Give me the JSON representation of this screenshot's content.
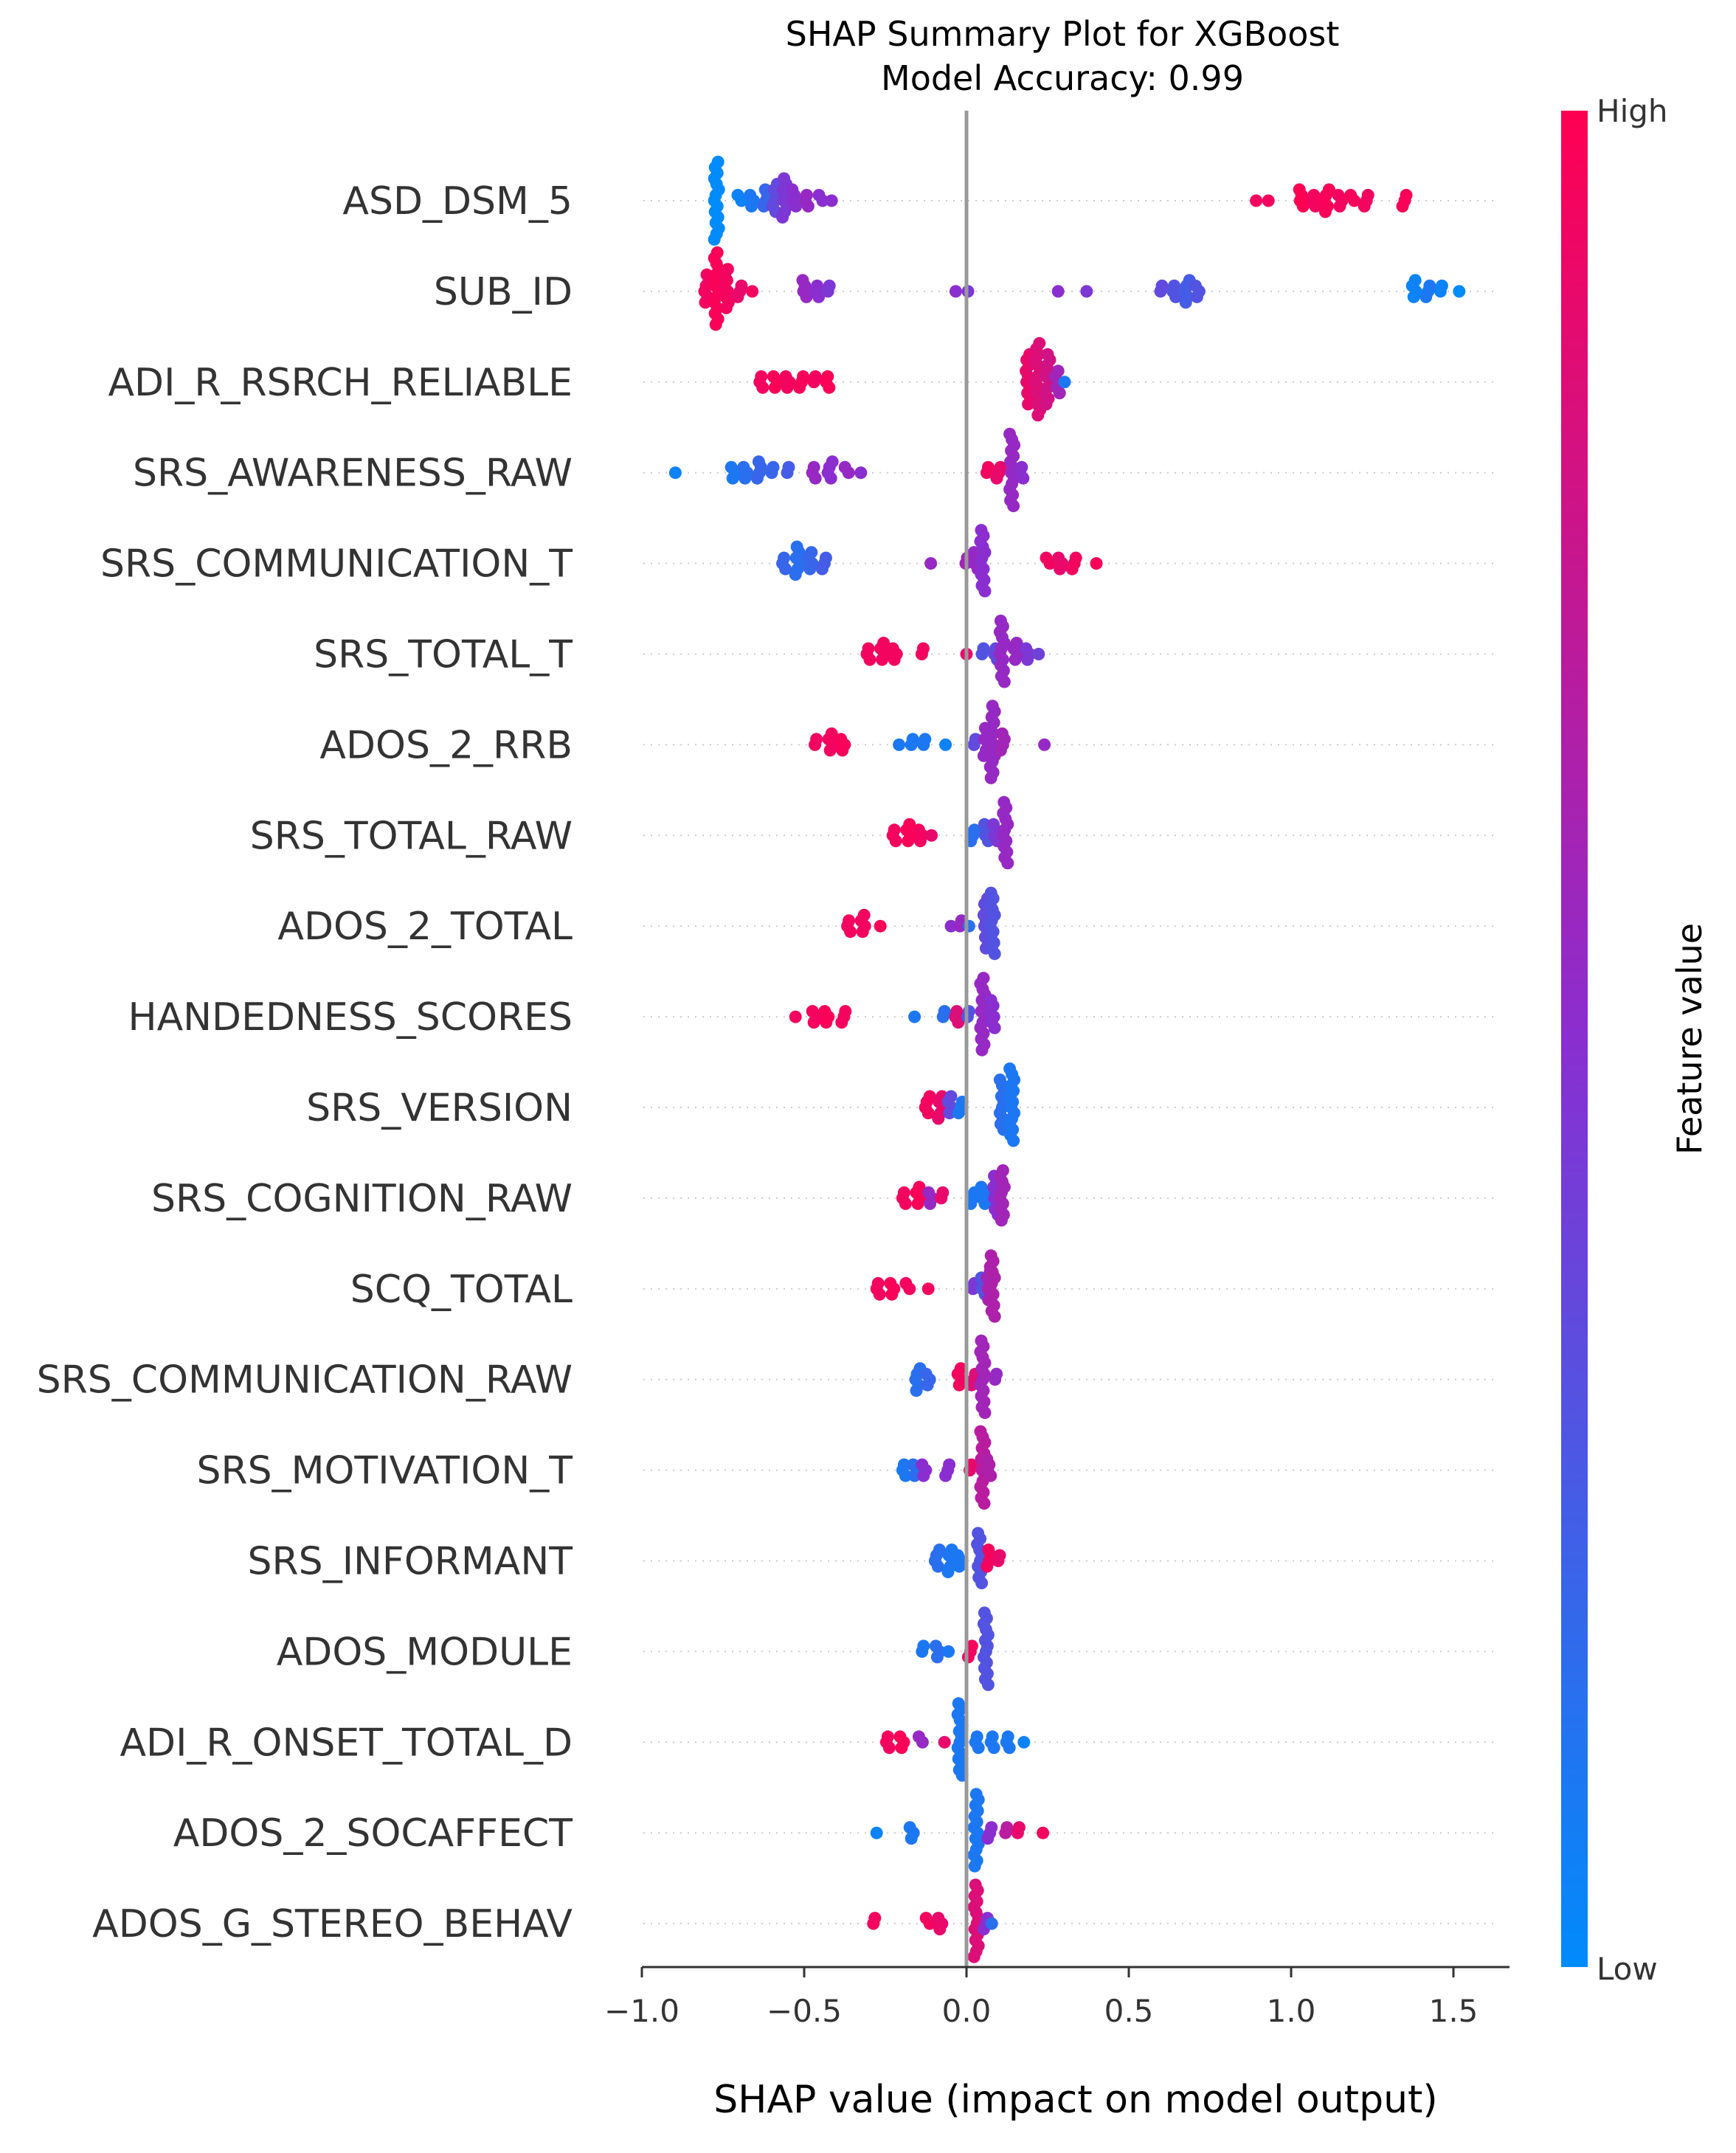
{
  "chart_data": {
    "type": "scatter",
    "title": "SHAP Summary Plot for XGBoost",
    "subtitle": "Model Accuracy: 0.99",
    "xlabel": "SHAP value (impact on model output)",
    "ylabel": "",
    "xlim": [
      -1.05,
      1.65
    ],
    "xticks": [
      -1.0,
      -0.5,
      0.0,
      0.5,
      1.0,
      1.5
    ],
    "xtick_labels": [
      "−1.0",
      "−0.5",
      "0.0",
      "0.5",
      "1.0",
      "1.5"
    ],
    "grid": false,
    "colorbar": {
      "label": "Feature value",
      "high_label": "High",
      "low_label": "Low",
      "high_color": "#ff0052",
      "mid_color": "#8a2ed0",
      "low_color": "#008bfb"
    },
    "features": [
      {
        "name": "ASD_DSM_5",
        "points": [
          {
            "x": -0.77,
            "v": 0.0,
            "n": 18
          },
          {
            "x": -0.7,
            "v": 0.05,
            "n": 2
          },
          {
            "x": -0.66,
            "v": 0.1,
            "n": 3
          },
          {
            "x": -0.62,
            "v": 0.2,
            "n": 4
          },
          {
            "x": -0.59,
            "v": 0.35,
            "n": 6
          },
          {
            "x": -0.56,
            "v": 0.45,
            "n": 8
          },
          {
            "x": -0.53,
            "v": 0.5,
            "n": 4
          },
          {
            "x": -0.49,
            "v": 0.55,
            "n": 3
          },
          {
            "x": -0.45,
            "v": 0.5,
            "n": 2
          },
          {
            "x": -0.42,
            "v": 0.5,
            "n": 1
          },
          {
            "x": 0.89,
            "v": 0.95,
            "n": 1
          },
          {
            "x": 0.93,
            "v": 0.95,
            "n": 1
          },
          {
            "x": 1.03,
            "v": 1.0,
            "n": 4
          },
          {
            "x": 1.07,
            "v": 0.95,
            "n": 3
          },
          {
            "x": 1.11,
            "v": 0.98,
            "n": 5
          },
          {
            "x": 1.15,
            "v": 0.95,
            "n": 3
          },
          {
            "x": 1.19,
            "v": 0.97,
            "n": 2
          },
          {
            "x": 1.23,
            "v": 0.95,
            "n": 3
          },
          {
            "x": 1.35,
            "v": 0.98,
            "n": 3
          }
        ]
      },
      {
        "name": "SUB_ID",
        "points": [
          {
            "x": -0.8,
            "v": 0.95,
            "n": 6
          },
          {
            "x": -0.77,
            "v": 0.98,
            "n": 14
          },
          {
            "x": -0.74,
            "v": 0.95,
            "n": 8
          },
          {
            "x": -0.7,
            "v": 0.9,
            "n": 3
          },
          {
            "x": -0.66,
            "v": 0.95,
            "n": 1
          },
          {
            "x": -0.5,
            "v": 0.55,
            "n": 4
          },
          {
            "x": -0.46,
            "v": 0.5,
            "n": 3
          },
          {
            "x": -0.42,
            "v": 0.45,
            "n": 2
          },
          {
            "x": -0.04,
            "v": 0.5,
            "n": 1
          },
          {
            "x": 0.0,
            "v": 0.45,
            "n": 1
          },
          {
            "x": 0.28,
            "v": 0.5,
            "n": 1
          },
          {
            "x": 0.37,
            "v": 0.45,
            "n": 1
          },
          {
            "x": 0.6,
            "v": 0.35,
            "n": 2
          },
          {
            "x": 0.64,
            "v": 0.3,
            "n": 3
          },
          {
            "x": 0.68,
            "v": 0.25,
            "n": 5
          },
          {
            "x": 0.71,
            "v": 0.3,
            "n": 3
          },
          {
            "x": 1.38,
            "v": 0.05,
            "n": 4
          },
          {
            "x": 1.42,
            "v": 0.1,
            "n": 3
          },
          {
            "x": 1.46,
            "v": 0.05,
            "n": 2
          },
          {
            "x": 1.52,
            "v": 0.0,
            "n": 1
          }
        ]
      },
      {
        "name": "ADI_R_RSRCH_RELIABLE",
        "points": [
          {
            "x": -0.63,
            "v": 0.95,
            "n": 3
          },
          {
            "x": -0.59,
            "v": 0.98,
            "n": 3
          },
          {
            "x": -0.55,
            "v": 0.95,
            "n": 3
          },
          {
            "x": -0.51,
            "v": 0.97,
            "n": 3
          },
          {
            "x": -0.47,
            "v": 0.95,
            "n": 2
          },
          {
            "x": -0.43,
            "v": 0.98,
            "n": 3
          },
          {
            "x": 0.19,
            "v": 0.9,
            "n": 10
          },
          {
            "x": 0.22,
            "v": 0.85,
            "n": 14
          },
          {
            "x": 0.25,
            "v": 0.8,
            "n": 10
          },
          {
            "x": 0.28,
            "v": 0.6,
            "n": 5
          },
          {
            "x": 0.3,
            "v": 0.1,
            "n": 1
          }
        ]
      },
      {
        "name": "SRS_AWARENESS_RAW",
        "points": [
          {
            "x": -0.89,
            "v": 0.05,
            "n": 1
          },
          {
            "x": -0.72,
            "v": 0.1,
            "n": 3
          },
          {
            "x": -0.68,
            "v": 0.15,
            "n": 3
          },
          {
            "x": -0.64,
            "v": 0.2,
            "n": 4
          },
          {
            "x": -0.6,
            "v": 0.2,
            "n": 2
          },
          {
            "x": -0.55,
            "v": 0.25,
            "n": 2
          },
          {
            "x": -0.47,
            "v": 0.55,
            "n": 3
          },
          {
            "x": -0.42,
            "v": 0.5,
            "n": 4
          },
          {
            "x": -0.37,
            "v": 0.55,
            "n": 2
          },
          {
            "x": -0.33,
            "v": 0.5,
            "n": 1
          },
          {
            "x": 0.06,
            "v": 0.95,
            "n": 2
          },
          {
            "x": 0.1,
            "v": 0.9,
            "n": 3
          },
          {
            "x": 0.14,
            "v": 0.55,
            "n": 14
          },
          {
            "x": 0.17,
            "v": 0.5,
            "n": 3
          }
        ]
      },
      {
        "name": "SRS_COMMUNICATION_T",
        "points": [
          {
            "x": -0.56,
            "v": 0.2,
            "n": 3
          },
          {
            "x": -0.52,
            "v": 0.15,
            "n": 6
          },
          {
            "x": -0.48,
            "v": 0.2,
            "n": 4
          },
          {
            "x": -0.44,
            "v": 0.25,
            "n": 3
          },
          {
            "x": -0.11,
            "v": 0.55,
            "n": 1
          },
          {
            "x": 0.0,
            "v": 0.6,
            "n": 2
          },
          {
            "x": 0.03,
            "v": 0.55,
            "n": 4
          },
          {
            "x": 0.05,
            "v": 0.5,
            "n": 12
          },
          {
            "x": 0.25,
            "v": 0.95,
            "n": 2
          },
          {
            "x": 0.29,
            "v": 0.9,
            "n": 3
          },
          {
            "x": 0.33,
            "v": 0.95,
            "n": 3
          },
          {
            "x": 0.4,
            "v": 0.98,
            "n": 1
          }
        ]
      },
      {
        "name": "SRS_TOTAL_T",
        "points": [
          {
            "x": -0.3,
            "v": 0.95,
            "n": 3
          },
          {
            "x": -0.26,
            "v": 0.95,
            "n": 4
          },
          {
            "x": -0.22,
            "v": 0.95,
            "n": 3
          },
          {
            "x": -0.14,
            "v": 0.95,
            "n": 2
          },
          {
            "x": 0.0,
            "v": 0.9,
            "n": 1
          },
          {
            "x": 0.05,
            "v": 0.3,
            "n": 2
          },
          {
            "x": 0.09,
            "v": 0.35,
            "n": 3
          },
          {
            "x": 0.11,
            "v": 0.55,
            "n": 12
          },
          {
            "x": 0.15,
            "v": 0.55,
            "n": 4
          },
          {
            "x": 0.19,
            "v": 0.45,
            "n": 3
          },
          {
            "x": 0.22,
            "v": 0.4,
            "n": 1
          }
        ]
      },
      {
        "name": "ADOS_2_RRB",
        "points": [
          {
            "x": -0.46,
            "v": 0.95,
            "n": 2
          },
          {
            "x": -0.42,
            "v": 0.95,
            "n": 4
          },
          {
            "x": -0.38,
            "v": 0.97,
            "n": 3
          },
          {
            "x": -0.21,
            "v": 0.1,
            "n": 1
          },
          {
            "x": -0.17,
            "v": 0.1,
            "n": 2
          },
          {
            "x": -0.13,
            "v": 0.1,
            "n": 2
          },
          {
            "x": -0.06,
            "v": 0.05,
            "n": 1
          },
          {
            "x": 0.03,
            "v": 0.35,
            "n": 2
          },
          {
            "x": 0.06,
            "v": 0.55,
            "n": 6
          },
          {
            "x": 0.08,
            "v": 0.55,
            "n": 14
          },
          {
            "x": 0.11,
            "v": 0.6,
            "n": 4
          },
          {
            "x": 0.24,
            "v": 0.55,
            "n": 1
          }
        ]
      },
      {
        "name": "SRS_TOTAL_RAW",
        "points": [
          {
            "x": -0.22,
            "v": 0.95,
            "n": 3
          },
          {
            "x": -0.18,
            "v": 0.98,
            "n": 4
          },
          {
            "x": -0.14,
            "v": 0.95,
            "n": 3
          },
          {
            "x": -0.11,
            "v": 0.9,
            "n": 1
          },
          {
            "x": 0.02,
            "v": 0.15,
            "n": 3
          },
          {
            "x": 0.06,
            "v": 0.3,
            "n": 4
          },
          {
            "x": 0.09,
            "v": 0.45,
            "n": 4
          },
          {
            "x": 0.12,
            "v": 0.55,
            "n": 12
          }
        ]
      },
      {
        "name": "ADOS_2_TOTAL",
        "points": [
          {
            "x": -0.36,
            "v": 0.95,
            "n": 3
          },
          {
            "x": -0.32,
            "v": 0.95,
            "n": 4
          },
          {
            "x": -0.27,
            "v": 0.98,
            "n": 1
          },
          {
            "x": -0.05,
            "v": 0.5,
            "n": 1
          },
          {
            "x": -0.02,
            "v": 0.55,
            "n": 2
          },
          {
            "x": 0.01,
            "v": 0.15,
            "n": 1
          },
          {
            "x": 0.06,
            "v": 0.35,
            "n": 10
          },
          {
            "x": 0.08,
            "v": 0.3,
            "n": 12
          }
        ]
      },
      {
        "name": "HANDEDNESS_SCORES",
        "points": [
          {
            "x": -0.52,
            "v": 0.95,
            "n": 1
          },
          {
            "x": -0.47,
            "v": 0.95,
            "n": 3
          },
          {
            "x": -0.43,
            "v": 0.98,
            "n": 3
          },
          {
            "x": -0.38,
            "v": 0.95,
            "n": 3
          },
          {
            "x": -0.16,
            "v": 0.1,
            "n": 1
          },
          {
            "x": -0.07,
            "v": 0.15,
            "n": 2
          },
          {
            "x": -0.03,
            "v": 0.85,
            "n": 3
          },
          {
            "x": 0.01,
            "v": 0.3,
            "n": 2
          },
          {
            "x": 0.05,
            "v": 0.55,
            "n": 14
          },
          {
            "x": 0.08,
            "v": 0.5,
            "n": 6
          }
        ]
      },
      {
        "name": "SRS_VERSION",
        "points": [
          {
            "x": -0.12,
            "v": 0.95,
            "n": 4
          },
          {
            "x": -0.08,
            "v": 0.9,
            "n": 5
          },
          {
            "x": -0.05,
            "v": 0.35,
            "n": 4
          },
          {
            "x": -0.02,
            "v": 0.1,
            "n": 3
          },
          {
            "x": 0.11,
            "v": 0.15,
            "n": 10
          },
          {
            "x": 0.14,
            "v": 0.1,
            "n": 14
          }
        ]
      },
      {
        "name": "SRS_COGNITION_RAW",
        "points": [
          {
            "x": -0.19,
            "v": 0.95,
            "n": 3
          },
          {
            "x": -0.15,
            "v": 0.98,
            "n": 4
          },
          {
            "x": -0.11,
            "v": 0.55,
            "n": 3
          },
          {
            "x": -0.08,
            "v": 0.9,
            "n": 2
          },
          {
            "x": 0.02,
            "v": 0.1,
            "n": 3
          },
          {
            "x": 0.05,
            "v": 0.1,
            "n": 4
          },
          {
            "x": 0.09,
            "v": 0.5,
            "n": 8
          },
          {
            "x": 0.11,
            "v": 0.6,
            "n": 10
          }
        ]
      },
      {
        "name": "SCQ_TOTAL",
        "points": [
          {
            "x": -0.27,
            "v": 0.95,
            "n": 3
          },
          {
            "x": -0.23,
            "v": 0.98,
            "n": 3
          },
          {
            "x": -0.18,
            "v": 0.95,
            "n": 2
          },
          {
            "x": -0.12,
            "v": 0.95,
            "n": 1
          },
          {
            "x": 0.02,
            "v": 0.45,
            "n": 2
          },
          {
            "x": 0.05,
            "v": 0.3,
            "n": 4
          },
          {
            "x": 0.07,
            "v": 0.6,
            "n": 6
          },
          {
            "x": 0.08,
            "v": 0.65,
            "n": 12
          }
        ]
      },
      {
        "name": "SRS_COMMUNICATION_RAW",
        "points": [
          {
            "x": -0.15,
            "v": 0.15,
            "n": 5
          },
          {
            "x": -0.12,
            "v": 0.2,
            "n": 3
          },
          {
            "x": -0.02,
            "v": 0.95,
            "n": 4
          },
          {
            "x": 0.02,
            "v": 0.85,
            "n": 3
          },
          {
            "x": 0.05,
            "v": 0.6,
            "n": 14
          },
          {
            "x": 0.09,
            "v": 0.55,
            "n": 2
          }
        ]
      },
      {
        "name": "SRS_MOTIVATION_T",
        "points": [
          {
            "x": -0.19,
            "v": 0.1,
            "n": 3
          },
          {
            "x": -0.16,
            "v": 0.15,
            "n": 3
          },
          {
            "x": -0.13,
            "v": 0.5,
            "n": 3
          },
          {
            "x": -0.06,
            "v": 0.5,
            "n": 3
          },
          {
            "x": 0.01,
            "v": 0.9,
            "n": 2
          },
          {
            "x": 0.05,
            "v": 0.7,
            "n": 14
          },
          {
            "x": 0.07,
            "v": 0.65,
            "n": 4
          }
        ]
      },
      {
        "name": "SRS_INFORMANT",
        "points": [
          {
            "x": -0.09,
            "v": 0.15,
            "n": 4
          },
          {
            "x": -0.05,
            "v": 0.1,
            "n": 5
          },
          {
            "x": -0.02,
            "v": 0.1,
            "n": 3
          },
          {
            "x": 0.04,
            "v": 0.3,
            "n": 10
          },
          {
            "x": 0.07,
            "v": 0.95,
            "n": 4
          },
          {
            "x": 0.1,
            "v": 0.9,
            "n": 2
          }
        ]
      },
      {
        "name": "ADOS_MODULE",
        "points": [
          {
            "x": -0.13,
            "v": 0.1,
            "n": 2
          },
          {
            "x": -0.09,
            "v": 0.15,
            "n": 3
          },
          {
            "x": -0.06,
            "v": 0.1,
            "n": 1
          },
          {
            "x": 0.01,
            "v": 0.95,
            "n": 3
          },
          {
            "x": 0.06,
            "v": 0.3,
            "n": 14
          }
        ]
      },
      {
        "name": "ADI_R_ONSET_TOTAL_D",
        "points": [
          {
            "x": -0.24,
            "v": 0.95,
            "n": 3
          },
          {
            "x": -0.2,
            "v": 0.98,
            "n": 3
          },
          {
            "x": -0.14,
            "v": 0.55,
            "n": 2
          },
          {
            "x": -0.07,
            "v": 0.9,
            "n": 1
          },
          {
            "x": -0.02,
            "v": 0.1,
            "n": 14
          },
          {
            "x": 0.03,
            "v": 0.1,
            "n": 3
          },
          {
            "x": 0.08,
            "v": 0.1,
            "n": 3
          },
          {
            "x": 0.13,
            "v": 0.1,
            "n": 3
          },
          {
            "x": 0.17,
            "v": 0.05,
            "n": 1
          }
        ]
      },
      {
        "name": "ADOS_2_SOCAFFECT",
        "points": [
          {
            "x": -0.27,
            "v": 0.05,
            "n": 1
          },
          {
            "x": -0.17,
            "v": 0.1,
            "n": 3
          },
          {
            "x": 0.03,
            "v": 0.1,
            "n": 14
          },
          {
            "x": 0.07,
            "v": 0.5,
            "n": 3
          },
          {
            "x": 0.12,
            "v": 0.7,
            "n": 2
          },
          {
            "x": 0.16,
            "v": 0.9,
            "n": 2
          },
          {
            "x": 0.24,
            "v": 0.95,
            "n": 1
          }
        ]
      },
      {
        "name": "ADOS_G_STEREO_BEHAV",
        "points": [
          {
            "x": -0.28,
            "v": 0.95,
            "n": 2
          },
          {
            "x": -0.12,
            "v": 0.95,
            "n": 2
          },
          {
            "x": -0.08,
            "v": 0.9,
            "n": 3
          },
          {
            "x": 0.03,
            "v": 0.85,
            "n": 14
          },
          {
            "x": 0.06,
            "v": 0.5,
            "n": 3
          },
          {
            "x": 0.08,
            "v": 0.15,
            "n": 1
          }
        ]
      }
    ]
  }
}
